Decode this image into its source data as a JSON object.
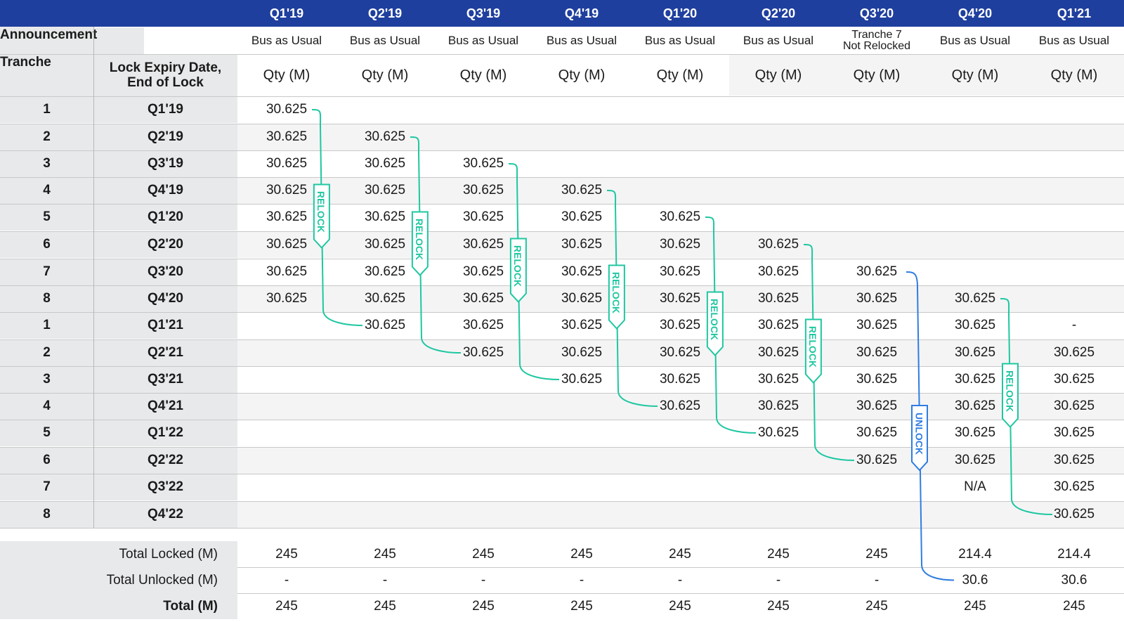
{
  "quarters": [
    "Q1'19",
    "Q2'19",
    "Q3'19",
    "Q4'19",
    "Q1'20",
    "Q2'20",
    "Q3'20",
    "Q4'20",
    "Q1'21"
  ],
  "announcement": {
    "label": "Announcement",
    "values": [
      "Bus as Usual",
      "Bus as Usual",
      "Bus as Usual",
      "Bus as Usual",
      "Bus as Usual",
      "Bus as Usual",
      "Tranche 7\nNot Relocked",
      "Bus as Usual",
      "Bus as Usual"
    ]
  },
  "header_row": {
    "tranche_label": "Tranche",
    "expiry_label": "Lock Expiry Date,\nEnd of Lock",
    "qty_label": "Qty (M)"
  },
  "rows": [
    {
      "tranche": "1",
      "expiry": "Q1'19",
      "values": [
        "30.625",
        "",
        "",
        "",
        "",
        "",
        "",
        "",
        ""
      ]
    },
    {
      "tranche": "2",
      "expiry": "Q2'19",
      "values": [
        "30.625",
        "30.625",
        "",
        "",
        "",
        "",
        "",
        "",
        ""
      ]
    },
    {
      "tranche": "3",
      "expiry": "Q3'19",
      "values": [
        "30.625",
        "30.625",
        "30.625",
        "",
        "",
        "",
        "",
        "",
        ""
      ]
    },
    {
      "tranche": "4",
      "expiry": "Q4'19",
      "values": [
        "30.625",
        "30.625",
        "30.625",
        "30.625",
        "",
        "",
        "",
        "",
        ""
      ]
    },
    {
      "tranche": "5",
      "expiry": "Q1'20",
      "values": [
        "30.625",
        "30.625",
        "30.625",
        "30.625",
        "30.625",
        "",
        "",
        "",
        ""
      ]
    },
    {
      "tranche": "6",
      "expiry": "Q2'20",
      "values": [
        "30.625",
        "30.625",
        "30.625",
        "30.625",
        "30.625",
        "30.625",
        "",
        "",
        ""
      ]
    },
    {
      "tranche": "7",
      "expiry": "Q3'20",
      "values": [
        "30.625",
        "30.625",
        "30.625",
        "30.625",
        "30.625",
        "30.625",
        "30.625",
        "",
        ""
      ]
    },
    {
      "tranche": "8",
      "expiry": "Q4'20",
      "values": [
        "30.625",
        "30.625",
        "30.625",
        "30.625",
        "30.625",
        "30.625",
        "30.625",
        "30.625",
        ""
      ]
    },
    {
      "tranche": "1",
      "expiry": "Q1'21",
      "values": [
        "",
        "30.625",
        "30.625",
        "30.625",
        "30.625",
        "30.625",
        "30.625",
        "30.625",
        "-"
      ]
    },
    {
      "tranche": "2",
      "expiry": "Q2'21",
      "values": [
        "",
        "",
        "30.625",
        "30.625",
        "30.625",
        "30.625",
        "30.625",
        "30.625",
        "30.625"
      ]
    },
    {
      "tranche": "3",
      "expiry": "Q3'21",
      "values": [
        "",
        "",
        "",
        "30.625",
        "30.625",
        "30.625",
        "30.625",
        "30.625",
        "30.625"
      ]
    },
    {
      "tranche": "4",
      "expiry": "Q4'21",
      "values": [
        "",
        "",
        "",
        "",
        "30.625",
        "30.625",
        "30.625",
        "30.625",
        "30.625"
      ]
    },
    {
      "tranche": "5",
      "expiry": "Q1'22",
      "values": [
        "",
        "",
        "",
        "",
        "",
        "30.625",
        "30.625",
        "30.625",
        "30.625"
      ]
    },
    {
      "tranche": "6",
      "expiry": "Q2'22",
      "values": [
        "",
        "",
        "",
        "",
        "",
        "",
        "30.625",
        "30.625",
        "30.625"
      ]
    },
    {
      "tranche": "7",
      "expiry": "Q3'22",
      "values": [
        "",
        "",
        "",
        "",
        "",
        "",
        "",
        "N/A",
        "30.625"
      ]
    },
    {
      "tranche": "8",
      "expiry": "Q4'22",
      "values": [
        "",
        "",
        "",
        "",
        "",
        "",
        "",
        "",
        "30.625"
      ]
    }
  ],
  "totals": [
    {
      "label": "Total Locked (M)",
      "values": [
        "245",
        "245",
        "245",
        "245",
        "245",
        "245",
        "245",
        "214.4",
        "214.4"
      ]
    },
    {
      "label": "Total Unlocked (M)",
      "values": [
        "-",
        "-",
        "-",
        "-",
        "-",
        "-",
        "-",
        "30.6",
        "30.6"
      ]
    },
    {
      "label": "Total (M)",
      "values": [
        "245",
        "245",
        "245",
        "245",
        "245",
        "245",
        "245",
        "245",
        "245"
      ]
    }
  ],
  "markers": {
    "relock_label": "RELOCK",
    "unlock_label": "UNLOCK",
    "relock_color": "#1fc7a1",
    "unlock_color": "#2f7de1"
  },
  "colors": {
    "header_bg": "#1f3f9e",
    "label_bg": "#e8e9eb"
  }
}
